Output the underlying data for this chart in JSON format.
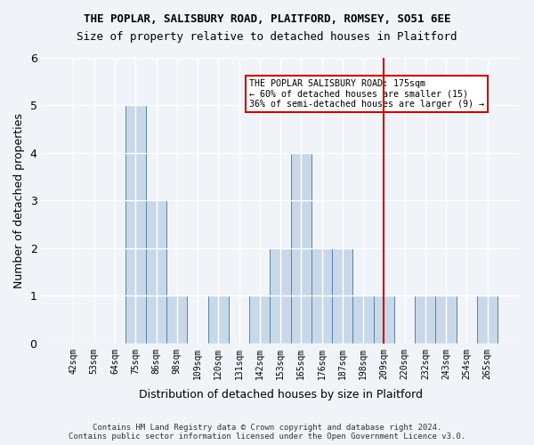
{
  "title1": "THE POPLAR, SALISBURY ROAD, PLAITFORD, ROMSEY, SO51 6EE",
  "title2": "Size of property relative to detached houses in Plaitford",
  "xlabel": "Distribution of detached houses by size in Plaitford",
  "ylabel": "Number of detached properties",
  "categories": [
    "42sqm",
    "53sqm",
    "64sqm",
    "75sqm",
    "86sqm",
    "98sqm",
    "109sqm",
    "120sqm",
    "131sqm",
    "142sqm",
    "153sqm",
    "165sqm",
    "176sqm",
    "187sqm",
    "198sqm",
    "209sqm",
    "220sqm",
    "232sqm",
    "243sqm",
    "254sqm",
    "265sqm"
  ],
  "values": [
    0,
    0,
    0,
    5,
    3,
    1,
    0,
    1,
    0,
    1,
    2,
    4,
    2,
    2,
    1,
    1,
    0,
    1,
    1,
    0,
    1
  ],
  "bar_color": "#c8d8e8",
  "bar_edge_color": "#5585a5",
  "reference_line_x": 15,
  "reference_line_color": "#cc0000",
  "annotation_title": "THE POPLAR SALISBURY ROAD: 175sqm",
  "annotation_line2": "← 60% of detached houses are smaller (15)",
  "annotation_line3": "36% of semi-detached houses are larger (9) →",
  "annotation_box_color": "#cc0000",
  "ylim": [
    0,
    6
  ],
  "yticks": [
    0,
    1,
    2,
    3,
    4,
    5,
    6
  ],
  "footer": "Contains HM Land Registry data © Crown copyright and database right 2024.\nContains public sector information licensed under the Open Government Licence v3.0.",
  "background_color": "#f0f4f8"
}
